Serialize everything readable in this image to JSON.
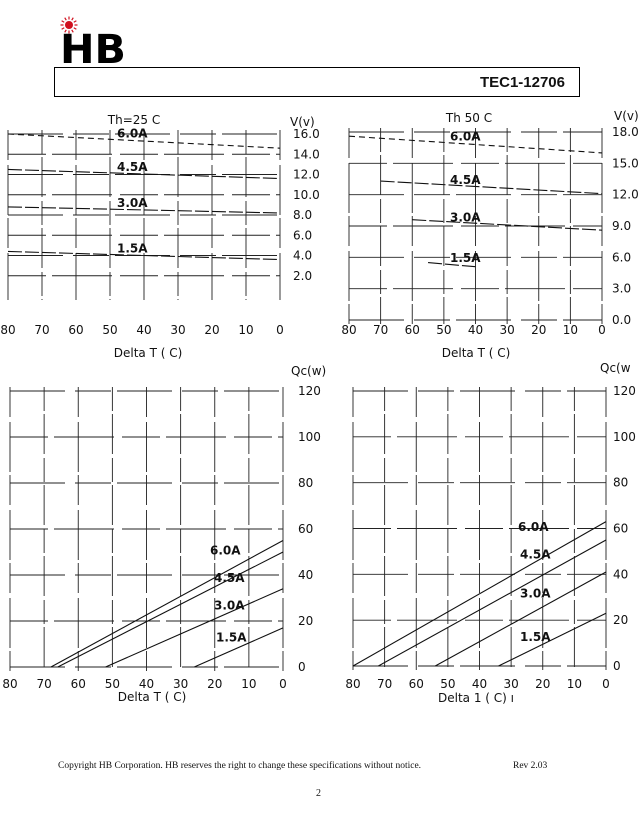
{
  "header": {
    "logo_text": "HB",
    "model": "TEC1-12706",
    "logo_color": "#d0101e"
  },
  "footer": {
    "copyright": "Copyright HB Corporation.  HB reserves the right to change these specifications without notice.",
    "revision": "Rev 2.03",
    "page_number": "2"
  },
  "chart_data": [
    {
      "type": "line",
      "title": "Th=25 C",
      "xlabel": "Delta  T ( C)",
      "ylabel": "V(v)",
      "xlim": [
        80,
        0
      ],
      "ylim": [
        0,
        16
      ],
      "x_ticks": [
        "80",
        "70",
        "60",
        "50",
        "40",
        "30",
        "20",
        "10",
        "0"
      ],
      "y_ticks": [
        "16.0",
        "14.0",
        "12.0",
        "10.0",
        "8.0",
        "6.0",
        "4.0",
        "2.0"
      ],
      "series": [
        {
          "name": "6.0A",
          "x": [
            80,
            0
          ],
          "y": [
            16.0,
            14.6
          ]
        },
        {
          "name": "4.5A",
          "x": [
            80,
            0
          ],
          "y": [
            12.5,
            11.6
          ]
        },
        {
          "name": "3.0A",
          "x": [
            80,
            0
          ],
          "y": [
            8.8,
            8.2
          ]
        },
        {
          "name": "1.5A",
          "x": [
            80,
            0
          ],
          "y": [
            4.4,
            3.6
          ]
        }
      ]
    },
    {
      "type": "line",
      "title": "Th  50 C",
      "xlabel": "Delta  T ( C)",
      "ylabel": "V(v)",
      "xlim": [
        80,
        0
      ],
      "ylim": [
        0,
        18
      ],
      "x_ticks": [
        "80",
        "70",
        "60",
        "50",
        "40",
        "30",
        "20",
        "10",
        "0"
      ],
      "y_ticks": [
        "18.0",
        "15.0",
        "12.0",
        "9.0",
        "6.0",
        "3.0",
        "0.0"
      ],
      "series": [
        {
          "name": "6.0A",
          "x": [
            80,
            0
          ],
          "y": [
            17.6,
            16.0
          ]
        },
        {
          "name": "4.5A",
          "x": [
            70,
            0
          ],
          "y": [
            13.3,
            12.1
          ]
        },
        {
          "name": "3.0A",
          "x": [
            60,
            0
          ],
          "y": [
            9.6,
            8.6
          ]
        },
        {
          "name": "1.5A",
          "x": [
            55,
            40
          ],
          "y": [
            5.5,
            5.1
          ]
        }
      ]
    },
    {
      "type": "line",
      "title": "",
      "xlabel": "Delta  T ( C)",
      "ylabel": "Qc(w)",
      "xlim": [
        80,
        0
      ],
      "ylim": [
        0,
        120
      ],
      "x_ticks": [
        "80",
        "70",
        "60",
        "50",
        "40",
        "30",
        "20",
        "10",
        "0"
      ],
      "y_ticks": [
        "120",
        "100",
        "80",
        "60",
        "40",
        "20",
        "0"
      ],
      "series": [
        {
          "name": "6.0A",
          "x": [
            68,
            0
          ],
          "y": [
            0,
            55
          ]
        },
        {
          "name": "4.5A",
          "x": [
            66,
            0
          ],
          "y": [
            0,
            50
          ]
        },
        {
          "name": "3.0A",
          "x": [
            52,
            0
          ],
          "y": [
            0,
            34
          ]
        },
        {
          "name": "1.5A",
          "x": [
            26,
            0
          ],
          "y": [
            0,
            17
          ]
        }
      ]
    },
    {
      "type": "line",
      "title": "",
      "xlabel": "Delta  1 ( C) ı",
      "ylabel": "Qc(w",
      "xlim": [
        80,
        0
      ],
      "ylim": [
        0,
        120
      ],
      "x_ticks": [
        "80",
        "70",
        "60",
        "50",
        "40",
        "30",
        "20",
        "10",
        "0"
      ],
      "y_ticks": [
        "120",
        "100",
        "80",
        "60",
        "40",
        "20",
        "0"
      ],
      "series": [
        {
          "name": "6.0A",
          "x": [
            80,
            0
          ],
          "y": [
            0,
            63
          ]
        },
        {
          "name": "4.5A",
          "x": [
            72,
            0
          ],
          "y": [
            0,
            55
          ]
        },
        {
          "name": "3.0A",
          "x": [
            54,
            0
          ],
          "y": [
            0,
            41
          ]
        },
        {
          "name": "1.5A",
          "x": [
            34,
            0
          ],
          "y": [
            0,
            23
          ]
        }
      ]
    }
  ]
}
